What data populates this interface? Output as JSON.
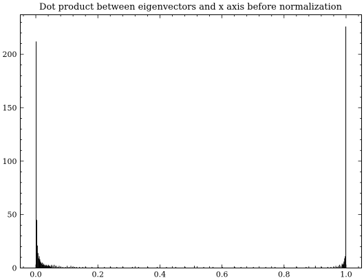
{
  "chart_data": {
    "type": "bar",
    "title": "Dot product between eigenvectors and x axis before normalization",
    "xlabel": "",
    "ylabel": "",
    "xlim": [
      -0.05,
      1.05
    ],
    "ylim": [
      0,
      237
    ],
    "grid": false,
    "bin_width": 0.002,
    "x_ticks": [
      0.0,
      0.2,
      0.4,
      0.6,
      0.8,
      1.0
    ],
    "x_tick_labels": [
      "0.0",
      "0.2",
      "0.4",
      "0.6",
      "0.8",
      "1.0"
    ],
    "y_ticks": [
      0,
      50,
      100,
      150,
      200
    ],
    "y_tick_labels": [
      "0",
      "50",
      "100",
      "150",
      "200"
    ],
    "x": [
      0.0,
      0.002,
      0.004,
      0.006,
      0.008,
      0.01,
      0.012,
      0.014,
      0.016,
      0.018,
      0.02,
      0.022,
      0.024,
      0.026,
      0.028,
      0.03,
      0.032,
      0.034,
      0.036,
      0.038,
      0.04,
      0.042,
      0.044,
      0.046,
      0.048,
      0.05,
      0.054,
      0.058,
      0.062,
      0.066,
      0.07,
      0.074,
      0.08,
      0.086,
      0.094,
      0.1,
      0.106,
      0.112,
      0.118,
      0.124,
      0.13,
      0.14,
      0.15,
      0.16,
      0.18,
      0.2,
      0.22,
      0.24,
      0.26,
      0.28,
      0.31,
      0.33,
      0.36,
      0.39,
      0.42,
      0.45,
      0.48,
      0.51,
      0.54,
      0.57,
      0.6,
      0.64,
      0.66,
      0.7,
      0.74,
      0.77,
      0.8,
      0.84,
      0.87,
      0.9,
      0.92,
      0.94,
      0.95,
      0.96,
      0.966,
      0.97,
      0.974,
      0.978,
      0.982,
      0.986,
      0.988,
      0.99,
      0.992,
      0.994,
      0.996,
      0.998
    ],
    "values": [
      212,
      45,
      21,
      14,
      9,
      11,
      8,
      6,
      5,
      4,
      5,
      3,
      4,
      3,
      2,
      3,
      2,
      3,
      2,
      2,
      3,
      2,
      2,
      1,
      2,
      3,
      2,
      3,
      2,
      2,
      1,
      2,
      1,
      1,
      1,
      2,
      1,
      2,
      1,
      1,
      1,
      1,
      1,
      1,
      1,
      1,
      1,
      1,
      1,
      1,
      1,
      1,
      1,
      1,
      1,
      1,
      1,
      2,
      1,
      1,
      1,
      1,
      1,
      1,
      1,
      1,
      1,
      1,
      1,
      2,
      1,
      1,
      1,
      1,
      2,
      1,
      2,
      3,
      2,
      4,
      3,
      4,
      6,
      9,
      11,
      226
    ]
  }
}
